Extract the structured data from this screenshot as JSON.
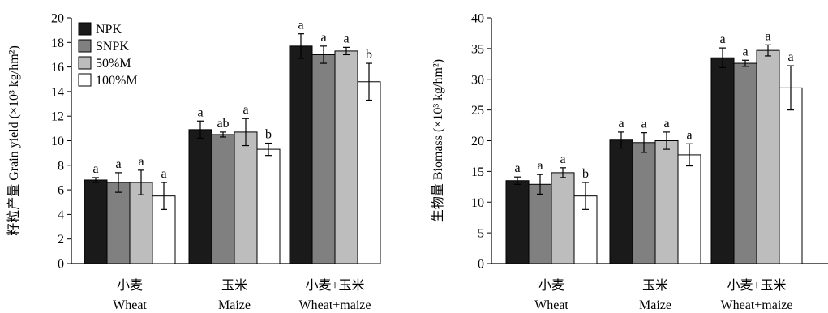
{
  "chart_data": [
    {
      "type": "bar",
      "ylabel": "籽粒产量 Grain yield (×10³ kg/hm²)",
      "ylim": [
        0,
        20
      ],
      "yticks": [
        0,
        2,
        4,
        6,
        8,
        10,
        12,
        14,
        16,
        18,
        20
      ],
      "categories": [
        {
          "zh": "小麦",
          "en": "Wheat"
        },
        {
          "zh": "玉米",
          "en": "Maize"
        },
        {
          "zh": "小麦+玉米",
          "en": "Wheat+maize"
        }
      ],
      "legend": {
        "position": "top-left"
      },
      "series": [
        {
          "name": "NPK",
          "color": "#1a1a1a",
          "values": [
            6.8,
            10.9,
            17.7
          ],
          "errors": [
            0.2,
            0.7,
            1.0
          ],
          "letters": [
            "a",
            "a",
            "a"
          ]
        },
        {
          "name": "SNPK",
          "color": "#808080",
          "values": [
            6.6,
            10.5,
            17.0
          ],
          "errors": [
            0.8,
            0.2,
            0.7
          ],
          "letters": [
            "a",
            "ab",
            "a"
          ]
        },
        {
          "name": "50%M",
          "color": "#bdbdbd",
          "values": [
            6.6,
            10.7,
            17.3
          ],
          "errors": [
            1.0,
            1.1,
            0.3
          ],
          "letters": [
            "a",
            "a",
            "a"
          ]
        },
        {
          "name": "100%M",
          "color": "#ffffff",
          "values": [
            5.5,
            9.3,
            14.8
          ],
          "errors": [
            1.1,
            0.5,
            1.5
          ],
          "letters": [
            "a",
            "b",
            "b"
          ]
        }
      ]
    },
    {
      "type": "bar",
      "ylabel": "生物量 Biomass (×10³ kg/hm²)",
      "ylim": [
        0,
        40
      ],
      "yticks": [
        0,
        5,
        10,
        15,
        20,
        25,
        30,
        35,
        40
      ],
      "categories": [
        {
          "zh": "小麦",
          "en": "Wheat"
        },
        {
          "zh": "玉米",
          "en": "Maize"
        },
        {
          "zh": "小麦+玉米",
          "en": "Wheat+maize"
        }
      ],
      "series": [
        {
          "name": "NPK",
          "color": "#1a1a1a",
          "values": [
            13.5,
            20.1,
            33.5
          ],
          "errors": [
            0.6,
            1.3,
            1.6
          ],
          "letters": [
            "a",
            "a",
            "a"
          ]
        },
        {
          "name": "SNPK",
          "color": "#808080",
          "values": [
            12.9,
            19.7,
            32.6
          ],
          "errors": [
            1.6,
            1.6,
            0.5
          ],
          "letters": [
            "a",
            "a",
            "a"
          ]
        },
        {
          "name": "50%M",
          "color": "#bdbdbd",
          "values": [
            14.8,
            20.0,
            34.7
          ],
          "errors": [
            0.8,
            1.4,
            0.9
          ],
          "letters": [
            "a",
            "a",
            "a"
          ]
        },
        {
          "name": "100%M",
          "color": "#ffffff",
          "values": [
            11.0,
            17.7,
            28.6
          ],
          "errors": [
            2.2,
            1.8,
            3.6
          ],
          "letters": [
            "b",
            "a",
            "a"
          ]
        }
      ]
    }
  ]
}
